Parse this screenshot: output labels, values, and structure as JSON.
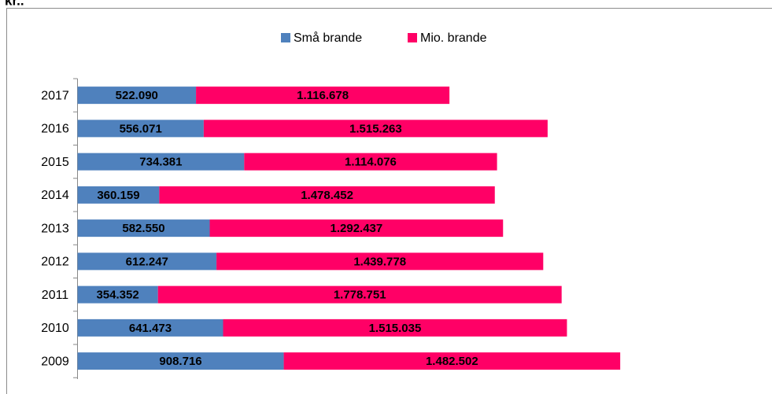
{
  "chart_data": {
    "type": "stacked-hbar",
    "title": "kr..",
    "categories": [
      "2017",
      "2016",
      "2015",
      "2014",
      "2013",
      "2012",
      "2011",
      "2010",
      "2009"
    ],
    "series": [
      {
        "name": "Små brande",
        "color": "#4f81bd",
        "values": [
          522090,
          556071,
          734381,
          360159,
          582550,
          612247,
          354352,
          641473,
          908716
        ],
        "value_labels": [
          "522.090",
          "556.071",
          "734.381",
          "360.159",
          "582.550",
          "612.247",
          "354.352",
          "641.473",
          "908.716"
        ]
      },
      {
        "name": "Mio. brande",
        "color": "#ff0066",
        "values": [
          1116678,
          1515263,
          1114076,
          1478452,
          1292437,
          1439778,
          1778751,
          1515035,
          1482502
        ],
        "value_labels": [
          "1.116.678",
          "1.515.263",
          "1.114.076",
          "1.478.452",
          "1.292.437",
          "1.439.778",
          "1.778.751",
          "1.515.035",
          "1.482.502"
        ]
      }
    ],
    "xlim": [
      0,
      2500000
    ],
    "legend": "top"
  }
}
